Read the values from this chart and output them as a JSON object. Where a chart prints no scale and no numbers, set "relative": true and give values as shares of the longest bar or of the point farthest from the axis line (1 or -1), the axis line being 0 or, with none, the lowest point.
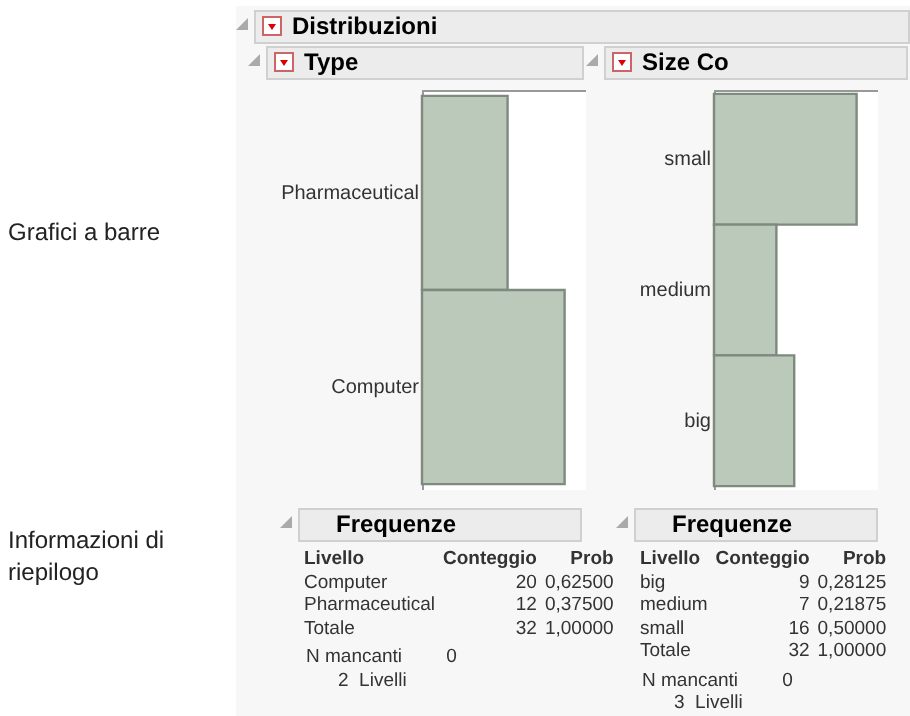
{
  "chart_data": [
    {
      "type": "other",
      "title": "Distribuzioni",
      "annotations": [
        "Grafici a barre",
        "Informazioni di riepilogo"
      ]
    },
    {
      "type": "bar",
      "orientation": "horizontal",
      "relative": true,
      "title": "Type",
      "categories": [
        "Pharmaceutical",
        "Computer"
      ],
      "values": [
        0.6,
        1
      ],
      "color": "#bac9b9",
      "annotations": [
        "Frequenze",
        "Livello",
        "Conteggio",
        "Prob",
        "20",
        "0,62500",
        "12",
        "0,37500",
        "Totale",
        "32",
        "1,00000",
        "N mancanti",
        "0",
        "2  Livelli"
      ]
    },
    {
      "type": "bar",
      "orientation": "horizontal",
      "relative": true,
      "title": "Size Co",
      "categories": [
        "small",
        "medium",
        "big"
      ],
      "values": [
        1,
        0.4375,
        0.5625
      ],
      "color": "#bac9b9",
      "annotations": [
        "Frequenze",
        "Livello",
        "Conteggio",
        "Prob",
        "9",
        "0,28125",
        "7",
        "0,21875",
        "16",
        "0,50000",
        "Totale",
        "32",
        "1,00000",
        "N mancanti",
        "0",
        "3  Livelli"
      ]
    }
  ]
}
